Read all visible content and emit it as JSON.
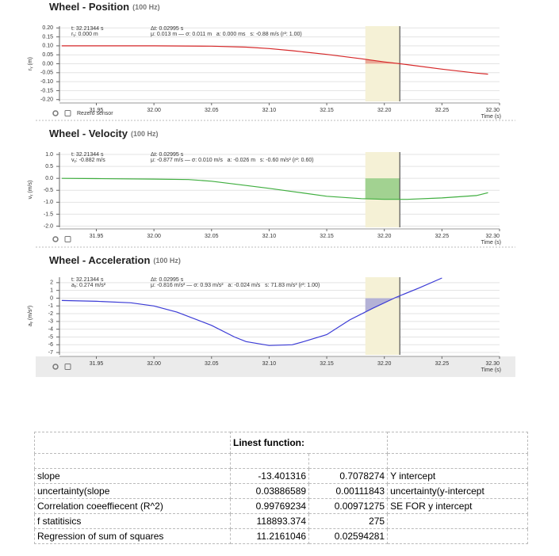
{
  "chart_data": [
    {
      "type": "line",
      "title": "Wheel - Position",
      "subtitle": "(100 Hz)",
      "y_label": "rᵧ (m)",
      "x_label": "Time (s)",
      "footer": "Rezero sensor",
      "annotations": [
        "t: 32.21344 s",
        "rᵧ: 0.000 m",
        "Δt: 0.02995 s",
        "μ: 0.013 m — σ: 0.011 m   a: 0.000 ms   s: -0.88 m/s (r²: 1.00)"
      ],
      "color": "#d62728",
      "fill_color": "rgba(214,39,40,0.35)",
      "selection_color": "#f5f1d6",
      "selection": [
        32.18349,
        32.21344
      ],
      "grid": true,
      "x": [
        31.92,
        31.95,
        32.0,
        32.05,
        32.08,
        32.1,
        32.12,
        32.15,
        32.18,
        32.2,
        32.22,
        32.25,
        32.28,
        32.29
      ],
      "values": [
        0.1,
        0.1,
        0.1,
        0.098,
        0.093,
        0.085,
        0.073,
        0.052,
        0.028,
        0.01,
        -0.005,
        -0.03,
        -0.052,
        -0.058
      ],
      "xlim": [
        31.918,
        32.3
      ],
      "ylim": [
        -0.21,
        0.21
      ],
      "xticks": [
        31.95,
        {
          "value": 32.0,
          "label": "32.00"
        },
        32.05,
        {
          "value": 32.1,
          "label": "32.10"
        },
        32.15,
        {
          "value": 32.2,
          "label": "32.20"
        },
        32.25,
        {
          "value": 32.3,
          "label": "32.30"
        }
      ],
      "yticks": [
        {
          "value": 0.2,
          "label": "0.20"
        },
        0.15,
        {
          "value": 0.1,
          "label": "0.10"
        },
        0.05,
        {
          "value": 0,
          "label": "0.00"
        },
        -0.05,
        {
          "value": -0.1,
          "label": "-0.10"
        },
        -0.15,
        {
          "value": -0.2,
          "label": "-0.20"
        }
      ]
    },
    {
      "type": "line",
      "title": "Wheel - Velocity",
      "subtitle": "(100 Hz)",
      "y_label": "vᵧ (m/s)",
      "x_label": "Time (s)",
      "annotations": [
        "t: 32.21344 s",
        "vᵧ: -0.882 m/s",
        "Δt: 0.02995 s",
        "μ: -0.877 m/s — σ: 0.010 m/s   a: -0.026 m   s: -0.60 m/s² (r²: 0.60)"
      ],
      "color": "#3fae3f",
      "fill_color": "rgba(63,174,63,0.45)",
      "selection_color": "#f5f1d6",
      "selection": [
        32.18349,
        32.21344
      ],
      "grid": true,
      "x": [
        31.92,
        31.95,
        32.0,
        32.03,
        32.05,
        32.08,
        32.1,
        32.12,
        32.15,
        32.18,
        32.2,
        32.22,
        32.25,
        32.28,
        32.29
      ],
      "values": [
        0,
        -0.01,
        -0.03,
        -0.05,
        -0.12,
        -0.3,
        -0.42,
        -0.55,
        -0.75,
        -0.85,
        -0.88,
        -0.88,
        -0.82,
        -0.72,
        -0.6
      ],
      "xlim": [
        31.918,
        32.3
      ],
      "ylim": [
        -2.05,
        1.1
      ],
      "xticks": [
        31.95,
        {
          "value": 32.0,
          "label": "32.00"
        },
        32.05,
        {
          "value": 32.1,
          "label": "32.10"
        },
        32.15,
        {
          "value": 32.2,
          "label": "32.20"
        },
        32.25,
        {
          "value": 32.3,
          "label": "32.30"
        }
      ],
      "yticks": [
        {
          "value": 1,
          "label": "1.0"
        },
        0.5,
        {
          "value": 0,
          "label": "0.0"
        },
        -0.5,
        {
          "value": -1,
          "label": "-1.0"
        },
        -1.5,
        {
          "value": -2,
          "label": "-2.0"
        }
      ]
    },
    {
      "type": "line",
      "title": "Wheel - Acceleration",
      "subtitle": "(100 Hz)",
      "y_label": "aᵧ (m/s²)",
      "x_label": "Time (s)",
      "annotations": [
        "t: 32.21344 s",
        "aᵧ: 0.274 m/s²",
        "Δt: 0.02995 s",
        "μ: -0.816 m/s² — σ: 0.93 m/s²   a: -0.024 m/s   s: 71.83 m/s³ (r²: 1.00)"
      ],
      "color": "#3b3bd6",
      "fill_color": "rgba(59,59,214,0.35)",
      "selection_color": "#f5f1d6",
      "selection": [
        32.18349,
        32.21344
      ],
      "grid": true,
      "x": [
        31.92,
        31.95,
        31.98,
        32.0,
        32.02,
        32.05,
        32.07,
        32.08,
        32.1,
        32.12,
        32.13,
        32.15,
        32.17,
        32.19,
        32.21,
        32.23,
        32.25
      ],
      "values": [
        -0.3,
        -0.4,
        -0.6,
        -1.0,
        -1.8,
        -3.5,
        -5.0,
        -5.6,
        -6.1,
        -6.0,
        -5.6,
        -4.7,
        -2.8,
        -1.3,
        0.1,
        1.3,
        2.6
      ],
      "xlim": [
        31.918,
        32.3
      ],
      "ylim": [
        -7.3,
        2.7
      ],
      "xticks": [
        31.95,
        {
          "value": 32.0,
          "label": "32.00"
        },
        32.05,
        {
          "value": 32.1,
          "label": "32.10"
        },
        32.15,
        {
          "value": 32.2,
          "label": "32.20"
        },
        32.25,
        {
          "value": 32.3,
          "label": "32.30"
        }
      ],
      "yticks": [
        2,
        1,
        0,
        -1,
        -2,
        -3,
        -4,
        -5,
        -6,
        -7
      ]
    }
  ],
  "table": {
    "title": "Linest function:",
    "rows": [
      [
        "slope",
        "-13.401316",
        "0.7078274",
        "Y intercept"
      ],
      [
        "uncertainty(slope",
        "0.03886589",
        "0.00111843",
        "uncertainty(y-intercept"
      ],
      [
        "Correlation coeeffiecent (R^2)",
        "0.99769234",
        "0.00971275",
        "SE FOR y intercept"
      ],
      [
        "f statitisics",
        "118893.374",
        "275"
      ],
      [
        "Regression of sum of squares",
        "11.2161046",
        "0.02594281"
      ]
    ]
  }
}
